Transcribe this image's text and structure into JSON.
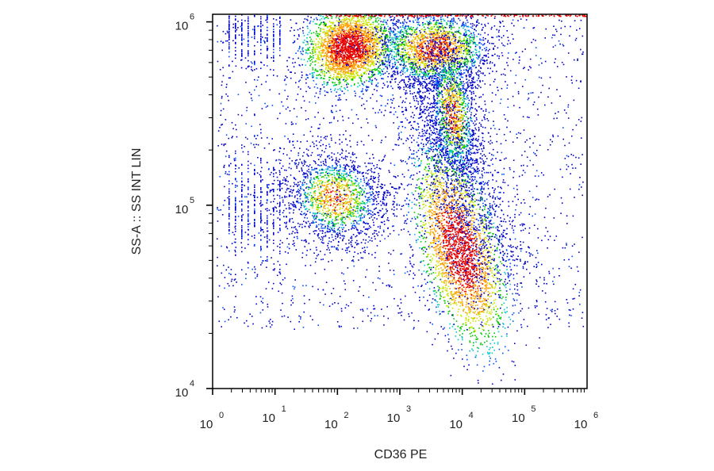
{
  "chart_data": {
    "type": "scatter",
    "subtype": "flow-cytometry density dot plot",
    "title": "",
    "xlabel": "CD36 PE",
    "ylabel": "SS-A :: SS INT LIN",
    "x_scale": "log",
    "y_scale": "log",
    "xlim": [
      1,
      1000000
    ],
    "ylim": [
      10000,
      1100000
    ],
    "grid": false,
    "legend": "none",
    "x_ticks": [
      {
        "value": 1,
        "base": "10",
        "exp": "0"
      },
      {
        "value": 10,
        "base": "10",
        "exp": "1"
      },
      {
        "value": 100,
        "base": "10",
        "exp": "2"
      },
      {
        "value": 1000,
        "base": "10",
        "exp": "3"
      },
      {
        "value": 10000,
        "base": "10",
        "exp": "4"
      },
      {
        "value": 100000,
        "base": "10",
        "exp": "5"
      },
      {
        "value": 1000000,
        "base": "10",
        "exp": "6"
      }
    ],
    "y_ticks": [
      {
        "value": 10000,
        "base": "10",
        "exp": "4"
      },
      {
        "value": 100000,
        "base": "10",
        "exp": "5"
      },
      {
        "value": 1000000,
        "base": "10",
        "exp": "6"
      }
    ],
    "density_colormap": [
      "#0000c8",
      "#0050ff",
      "#00c8c8",
      "#00c800",
      "#c8e600",
      "#ffa000",
      "#e60000"
    ],
    "populations": [
      {
        "x_center": 150,
        "y_center": 730000,
        "density": "highest"
      },
      {
        "x_center": 3500,
        "y_center": 720000,
        "density": "high"
      },
      {
        "x_center": 7000,
        "y_center": 320000,
        "density": "medium"
      },
      {
        "x_center": 90,
        "y_center": 110000,
        "density": "medium"
      },
      {
        "x_center": 9000,
        "y_center": 58000,
        "density": "highest"
      }
    ]
  }
}
